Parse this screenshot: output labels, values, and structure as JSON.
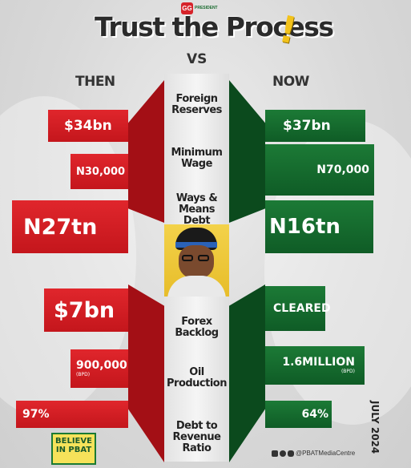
{
  "brand": {
    "logo_mark": "GG",
    "logo_text": "PRESIDENT"
  },
  "header": {
    "title": "Trust the Process",
    "exclaim": "!",
    "vs": "VS"
  },
  "columns": {
    "then": "THEN",
    "now": "NOW"
  },
  "metrics": [
    {
      "label1": "Foreign",
      "label2": "Reserves",
      "then": "$34bn",
      "now": "$37bn"
    },
    {
      "label1": "Minimum",
      "label2": "Wage",
      "then": "N30,000",
      "now": "N70,000"
    },
    {
      "label1": "Ways &",
      "label2": "Means Debt",
      "then": "N27tn",
      "now": "N16tn"
    },
    {
      "label1": "Forex",
      "label2": "Backlog",
      "then": "$7bn",
      "now": "CLEARED"
    },
    {
      "label1": "Oil",
      "label2": "Production",
      "then": "900,000",
      "then_sub": "(BPD)",
      "now": "1.6MILLION",
      "now_sub": "(BPD)"
    },
    {
      "label1": "Debt to",
      "label2": "Revenue",
      "label3": "Ratio",
      "then": "97%",
      "now": "64%"
    }
  ],
  "footer": {
    "believe_1": "BELIEVE",
    "believe_2": "IN PBAT",
    "social_handle": "@PBATMediaCentre",
    "date": "JULY 2024"
  },
  "colors": {
    "red": "#d6232a",
    "green": "#146b2f",
    "yellow": "#f2c21b"
  }
}
